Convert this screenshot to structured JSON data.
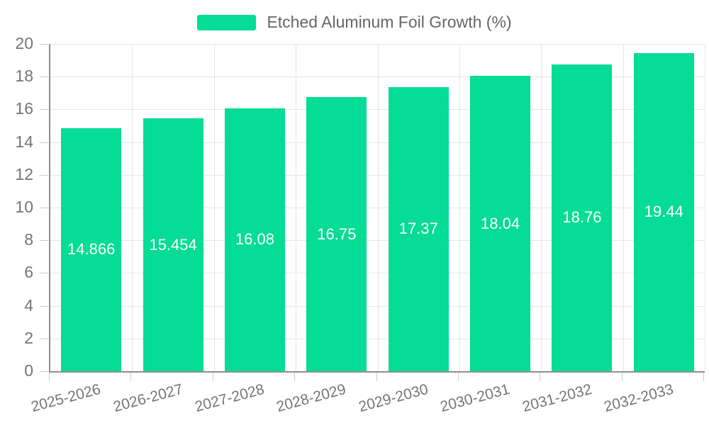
{
  "legend": {
    "label": "Etched Aluminum Foil Growth (%)"
  },
  "colors": {
    "bar": "#05dc95",
    "grid": "#e6e6e6",
    "axis_line": "#8f8f8f",
    "tick": "#cccccc",
    "axis_label_text": "#757575",
    "legend_text": "#666666",
    "value_label_text": "#ffffff",
    "background": "#ffffff"
  },
  "chart_data": {
    "type": "bar",
    "title": "",
    "xlabel": "",
    "ylabel": "",
    "categories": [
      "2025-2026",
      "2026-2027",
      "2027-2028",
      "2028-2029",
      "2029-2030",
      "2030-2031",
      "2031-2032",
      "2032-2033"
    ],
    "series": [
      {
        "name": "Etched Aluminum Foil Growth (%)",
        "values": [
          14.866,
          15.454,
          16.08,
          16.75,
          17.37,
          18.04,
          18.76,
          19.44
        ]
      }
    ],
    "value_labels": [
      "14.866",
      "15.454",
      "16.08",
      "16.75",
      "17.37",
      "18.04",
      "18.76",
      "19.44"
    ],
    "ylim": [
      0,
      20
    ],
    "yticks": [
      0,
      2,
      4,
      6,
      8,
      10,
      12,
      14,
      16,
      18,
      20
    ],
    "grid": true,
    "legend_position": "top-center",
    "x_label_rotation_deg": -15
  }
}
